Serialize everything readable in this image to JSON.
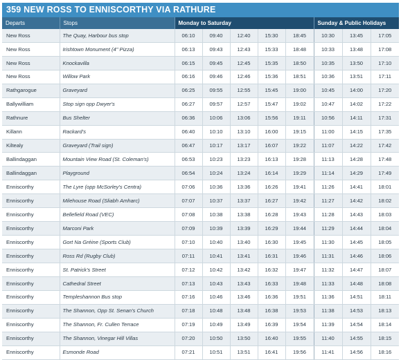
{
  "title": "359 NEW ROSS TO ENNISCORTHY VIA RATHURE",
  "headers": {
    "departs": "Departs",
    "stops": "Stops",
    "weekday": "Monday to Saturday",
    "sunday": "Sunday & Public Holidays"
  },
  "rows": [
    {
      "departs": "New Ross",
      "stop": "The Quay, Harbour bus stop",
      "times": [
        "06:10",
        "09:40",
        "12:40",
        "15:30",
        "18:45",
        "10:30",
        "13:45",
        "17:05"
      ]
    },
    {
      "departs": "New Ross",
      "stop": "Irishtown Monument (4\" Pizza)",
      "times": [
        "06:13",
        "09:43",
        "12:43",
        "15:33",
        "18:48",
        "10:33",
        "13:48",
        "17:08"
      ]
    },
    {
      "departs": "New Ross",
      "stop": "Knockavilla",
      "times": [
        "06:15",
        "09:45",
        "12:45",
        "15:35",
        "18:50",
        "10:35",
        "13:50",
        "17:10"
      ]
    },
    {
      "departs": "New Ross",
      "stop": "Willow Park",
      "times": [
        "06:16",
        "09:46",
        "12:46",
        "15:36",
        "18:51",
        "10:36",
        "13:51",
        "17:11"
      ]
    },
    {
      "departs": "Rathgarogue",
      "stop": "Graveyard",
      "times": [
        "06:25",
        "09:55",
        "12:55",
        "15:45",
        "19:00",
        "10:45",
        "14:00",
        "17:20"
      ]
    },
    {
      "departs": "Ballywilliam",
      "stop": "Stop sign opp Dwyer's",
      "times": [
        "06:27",
        "09:57",
        "12:57",
        "15:47",
        "19:02",
        "10:47",
        "14:02",
        "17:22"
      ]
    },
    {
      "departs": "Rathnure",
      "stop": "Bus Shelter",
      "times": [
        "06:36",
        "10:06",
        "13:06",
        "15:56",
        "19:11",
        "10:56",
        "14:11",
        "17:31"
      ]
    },
    {
      "departs": "Killann",
      "stop": "Rackard's",
      "times": [
        "06:40",
        "10:10",
        "13:10",
        "16:00",
        "19:15",
        "11:00",
        "14:15",
        "17:35"
      ]
    },
    {
      "departs": "Kiltealy",
      "stop": "Graveyard (Trail sign)",
      "times": [
        "06:47",
        "10:17",
        "13:17",
        "16:07",
        "19:22",
        "11:07",
        "14:22",
        "17:42"
      ]
    },
    {
      "departs": "Ballindaggan",
      "stop": "Mountain View Road (St. Coleman's)",
      "times": [
        "06:53",
        "10:23",
        "13:23",
        "16:13",
        "19:28",
        "11:13",
        "14:28",
        "17:48"
      ]
    },
    {
      "departs": "Ballindaggan",
      "stop": "Playground",
      "times": [
        "06:54",
        "10:24",
        "13:24",
        "16:14",
        "19:29",
        "11:14",
        "14:29",
        "17:49"
      ]
    },
    {
      "departs": "Enniscorthy",
      "stop": "The Lyre (opp McSorley's Centra)",
      "times": [
        "07:06",
        "10:36",
        "13:36",
        "16:26",
        "19:41",
        "11:26",
        "14:41",
        "18:01"
      ]
    },
    {
      "departs": "Enniscorthy",
      "stop": "Milehouse Road (Sliabh Amharc)",
      "times": [
        "07:07",
        "10:37",
        "13:37",
        "16:27",
        "19:42",
        "11:27",
        "14:42",
        "18:02"
      ]
    },
    {
      "departs": "Enniscorthy",
      "stop": "Bellefield Road (VEC)",
      "times": [
        "07:08",
        "10:38",
        "13:38",
        "16:28",
        "19:43",
        "11:28",
        "14:43",
        "18:03"
      ]
    },
    {
      "departs": "Enniscorthy",
      "stop": "Marconi Park",
      "times": [
        "07:09",
        "10:39",
        "13:39",
        "16:29",
        "19:44",
        "11:29",
        "14:44",
        "18:04"
      ]
    },
    {
      "departs": "Enniscorthy",
      "stop": "Gort Na Gréine (Sports Club)",
      "times": [
        "07:10",
        "10:40",
        "13:40",
        "16:30",
        "19:45",
        "11:30",
        "14:45",
        "18:05"
      ]
    },
    {
      "departs": "Enniscorthy",
      "stop": "Ross Rd (Rugby Club)",
      "times": [
        "07:11",
        "10:41",
        "13:41",
        "16:31",
        "19:46",
        "11:31",
        "14:46",
        "18:06"
      ]
    },
    {
      "departs": "Enniscorthy",
      "stop": "St. Patrick's Street",
      "times": [
        "07:12",
        "10:42",
        "13:42",
        "16:32",
        "19:47",
        "11:32",
        "14:47",
        "18:07"
      ]
    },
    {
      "departs": "Enniscorthy",
      "stop": "Cathedral Street",
      "times": [
        "07:13",
        "10:43",
        "13:43",
        "16:33",
        "19:48",
        "11:33",
        "14:48",
        "18:08"
      ]
    },
    {
      "departs": "Enniscorthy",
      "stop": "Templeshannon Bus stop",
      "times": [
        "07:16",
        "10:46",
        "13:46",
        "16:36",
        "19:51",
        "11:36",
        "14:51",
        "18:11"
      ]
    },
    {
      "departs": "Enniscorthy",
      "stop": "The Shannon, Opp St. Senan's Church",
      "times": [
        "07:18",
        "10:48",
        "13:48",
        "16:38",
        "19:53",
        "11:38",
        "14:53",
        "18:13"
      ]
    },
    {
      "departs": "Enniscorthy",
      "stop": "The Shannon, Fr. Cullen Terrace",
      "times": [
        "07:19",
        "10:49",
        "13:49",
        "16:39",
        "19:54",
        "11:39",
        "14:54",
        "18:14"
      ]
    },
    {
      "departs": "Enniscorthy",
      "stop": "The Shannon, Vinegar Hill Villas",
      "times": [
        "07:20",
        "10:50",
        "13:50",
        "16:40",
        "19:55",
        "11:40",
        "14:55",
        "18:15"
      ]
    },
    {
      "departs": "Enniscorthy",
      "stop": "Esmonde Road",
      "times": [
        "07:21",
        "10:51",
        "13:51",
        "16:41",
        "19:56",
        "11:41",
        "14:56",
        "18:16"
      ]
    }
  ]
}
